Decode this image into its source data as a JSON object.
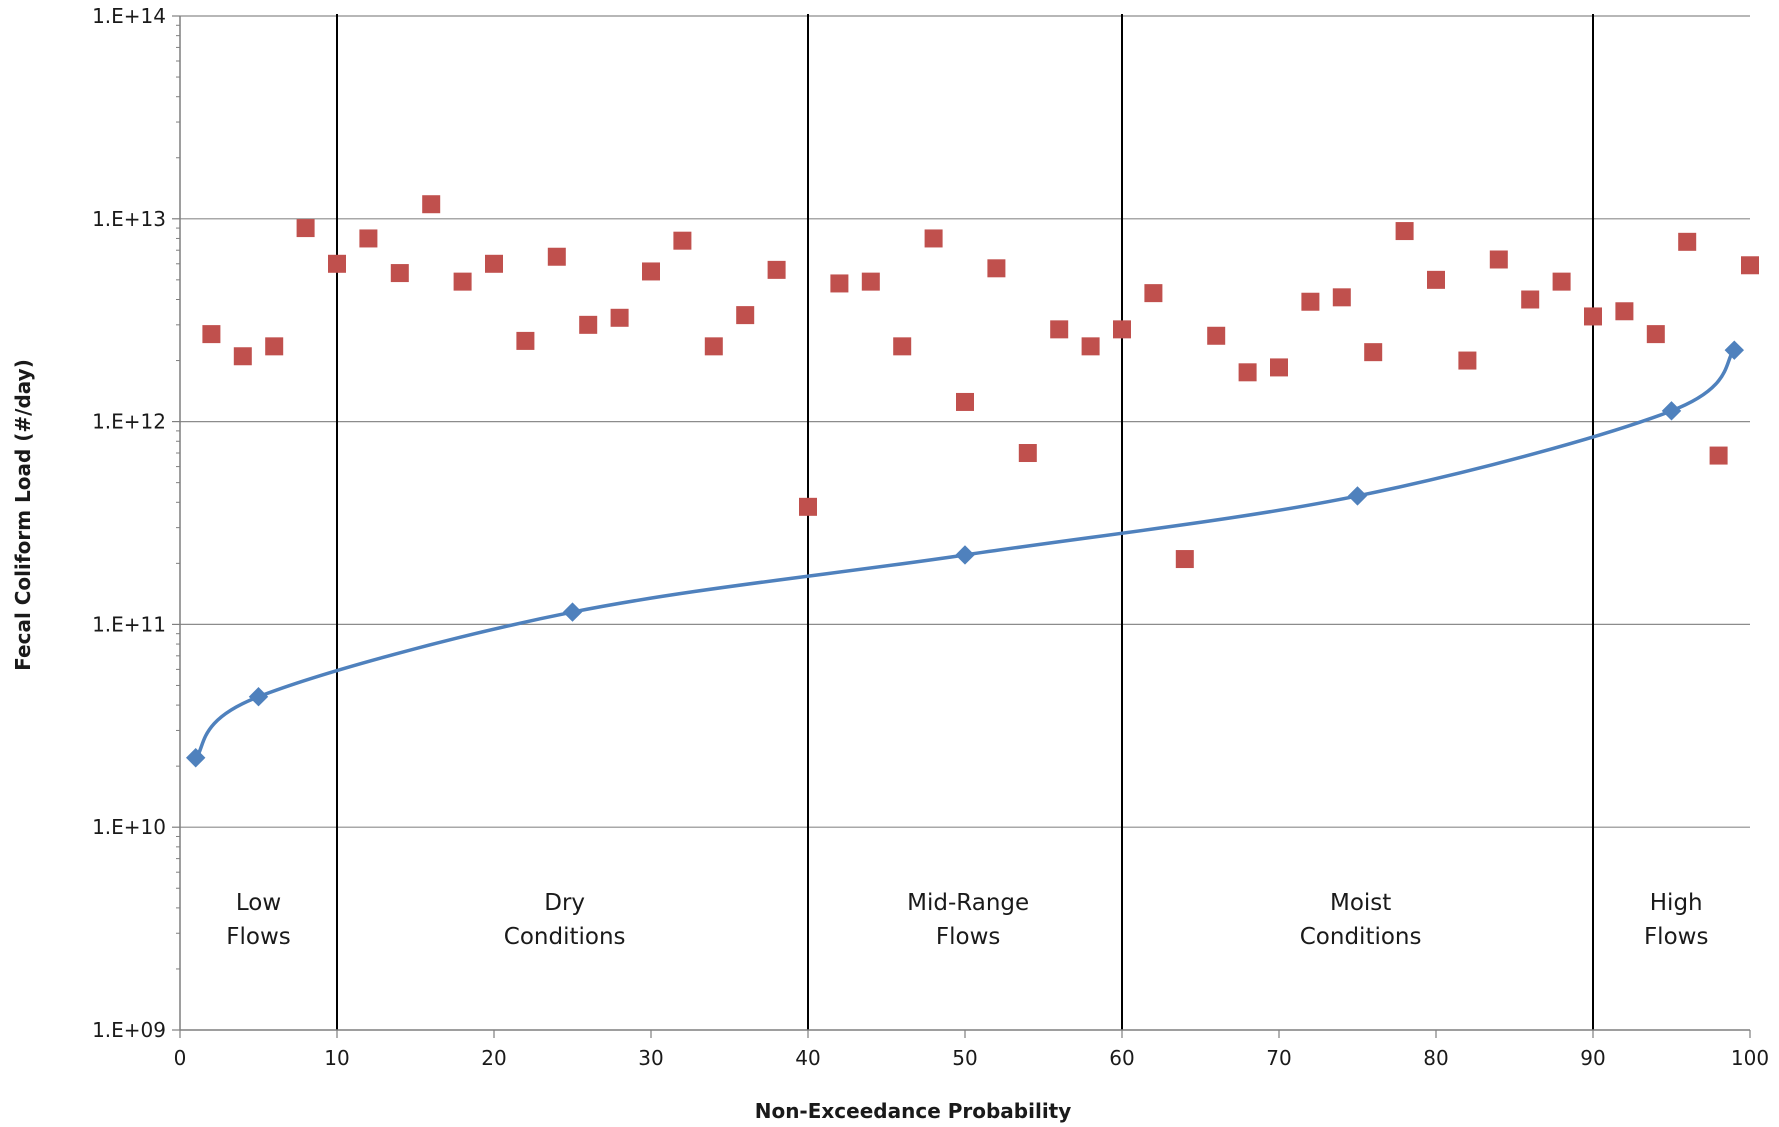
{
  "chart_data": {
    "type": "scatter",
    "title": "",
    "xlabel": "Non-Exceedance Probability",
    "ylabel": "Fecal Coliform Load (#/day)",
    "xlim": [
      0,
      100
    ],
    "ylim": [
      1000000000.0,
      100000000000000.0
    ],
    "yscale": "log",
    "grid": {
      "horizontal": true,
      "vertical": false
    },
    "legend": "none",
    "x_ticks": [
      0,
      10,
      20,
      30,
      40,
      50,
      60,
      70,
      80,
      90,
      100
    ],
    "x_tick_labels": [
      "0",
      "10",
      "20",
      "30",
      "40",
      "50",
      "60",
      "70",
      "80",
      "90",
      "100"
    ],
    "y_ticks": [
      1000000000.0,
      10000000000.0,
      100000000000.0,
      1000000000000.0,
      10000000000000.0,
      100000000000000.0
    ],
    "y_tick_labels": [
      "1.E+09",
      "1.E+10",
      "1.E+11",
      "1.E+12",
      "1.E+13",
      "1.E+14"
    ],
    "region_boundaries": [
      10,
      40,
      60,
      90
    ],
    "regions": [
      {
        "line1": "Low",
        "line2": "Flows",
        "x": 5
      },
      {
        "line1": "Dry",
        "line2": "Conditions",
        "x": 24.5
      },
      {
        "line1": "Mid-Range",
        "line2": "Flows",
        "x": 50.2
      },
      {
        "line1": "Moist",
        "line2": "Conditions",
        "x": 75.2
      },
      {
        "line1": "High",
        "line2": "Flows",
        "x": 95.3
      }
    ],
    "series": [
      {
        "kind": "line",
        "color": "#4f81bd",
        "marker": "diamond",
        "x": [
          1,
          5,
          25,
          50,
          75,
          95,
          99
        ],
        "y": [
          22000000000.0,
          44000000000.0,
          115000000000.0,
          220000000000.0,
          430000000000.0,
          1130000000000.0,
          2250000000000.0
        ]
      },
      {
        "kind": "scatter",
        "color": "#c0504d",
        "marker": "square",
        "x": [
          2,
          4,
          6,
          8,
          10,
          12,
          14,
          16,
          18,
          20,
          22,
          24,
          26,
          28,
          30,
          32,
          34,
          36,
          38,
          40,
          42,
          44,
          46,
          48,
          50,
          52,
          54,
          56,
          58,
          60,
          62,
          64,
          66,
          68,
          70,
          72,
          74,
          76,
          78,
          80,
          82,
          84,
          86,
          88,
          90,
          92,
          94,
          96,
          98,
          100
        ],
        "y": [
          2700000000000.0,
          2100000000000.0,
          2350000000000.0,
          9000000000000.0,
          6000000000000.0,
          8000000000000.0,
          5400000000000.0,
          11800000000000.0,
          4900000000000.0,
          6000000000000.0,
          2500000000000.0,
          6500000000000.0,
          3000000000000.0,
          3250000000000.0,
          5500000000000.0,
          7800000000000.0,
          2350000000000.0,
          3350000000000.0,
          5600000000000.0,
          380000000000.0,
          4800000000000.0,
          4900000000000.0,
          2350000000000.0,
          8000000000000.0,
          1250000000000.0,
          5700000000000.0,
          700000000000.0,
          2850000000000.0,
          2350000000000.0,
          2850000000000.0,
          4300000000000.0,
          210000000000.0,
          2650000000000.0,
          1750000000000.0,
          1850000000000.0,
          3900000000000.0,
          4100000000000.0,
          2200000000000.0,
          8700000000000.0,
          5000000000000.0,
          2000000000000.0,
          6300000000000.0,
          4000000000000.0,
          4900000000000.0,
          3300000000000.0,
          3500000000000.0,
          2700000000000.0,
          7700000000000.0,
          680000000000.0,
          5900000000000.0
        ]
      }
    ]
  }
}
